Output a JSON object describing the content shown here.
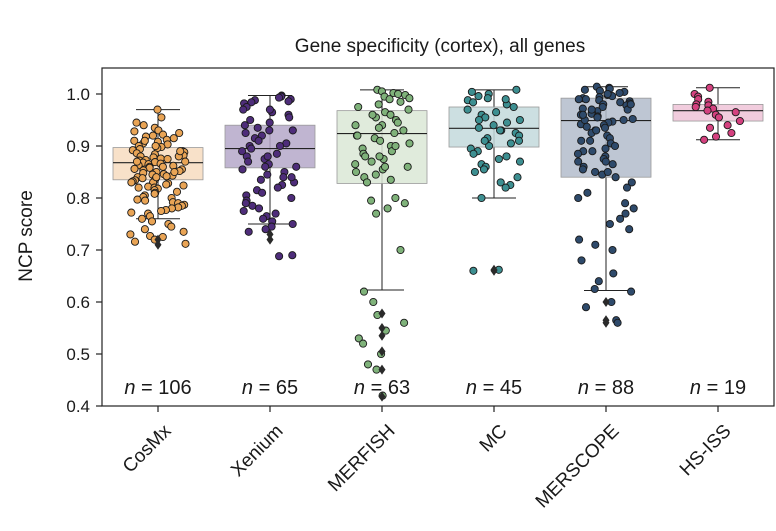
{
  "chart_data": {
    "type": "box",
    "title": "Gene specificity (cortex), all genes",
    "xlabel": "",
    "ylabel": "NCP score",
    "ylim": [
      0.4,
      1.05
    ],
    "yticks": [
      "0.4",
      "0.5",
      "0.6",
      "0.7",
      "0.8",
      "0.9",
      "1.0"
    ],
    "grid": false,
    "n_prefix": "n",
    "n_equals": " = ",
    "series": [
      {
        "name": "CosMx",
        "n": 106,
        "n_text": "106",
        "box_color": "#f7dcc0",
        "point_color": "#e9a455",
        "q1": 0.835,
        "median": 0.868,
        "q3": 0.897,
        "whisker_low": 0.76,
        "whisker_high": 0.97,
        "outliers": [
          0.71,
          0.72
        ],
        "points": [
          0.97,
          0.955,
          0.945,
          0.94,
          0.935,
          0.93,
          0.928,
          0.925,
          0.922,
          0.92,
          0.918,
          0.915,
          0.912,
          0.91,
          0.908,
          0.905,
          0.903,
          0.9,
          0.898,
          0.896,
          0.894,
          0.892,
          0.89,
          0.888,
          0.886,
          0.884,
          0.882,
          0.88,
          0.878,
          0.876,
          0.875,
          0.873,
          0.872,
          0.87,
          0.869,
          0.868,
          0.866,
          0.865,
          0.863,
          0.862,
          0.86,
          0.858,
          0.856,
          0.855,
          0.853,
          0.852,
          0.85,
          0.848,
          0.846,
          0.845,
          0.843,
          0.842,
          0.84,
          0.838,
          0.836,
          0.834,
          0.832,
          0.83,
          0.828,
          0.826,
          0.824,
          0.822,
          0.82,
          0.818,
          0.815,
          0.812,
          0.81,
          0.808,
          0.805,
          0.802,
          0.8,
          0.797,
          0.795,
          0.792,
          0.79,
          0.787,
          0.785,
          0.782,
          0.78,
          0.777,
          0.775,
          0.772,
          0.77,
          0.765,
          0.76,
          0.755,
          0.75,
          0.745,
          0.74,
          0.735,
          0.73,
          0.727,
          0.725,
          0.72,
          0.716,
          0.712,
          0.9,
          0.88,
          0.86,
          0.84,
          0.87,
          0.85,
          0.89,
          0.91,
          0.83,
          0.82
        ]
      },
      {
        "name": "Xenium",
        "n": 65,
        "n_text": "65",
        "box_color": "#b5a8c9",
        "point_color": "#4e2d7a",
        "q1": 0.858,
        "median": 0.895,
        "q3": 0.94,
        "whisker_low": 0.75,
        "whisker_high": 0.997,
        "outliers": [
          0.73,
          0.72
        ],
        "points": [
          0.997,
          0.995,
          0.993,
          0.99,
          0.988,
          0.986,
          0.984,
          0.982,
          0.975,
          0.97,
          0.965,
          0.96,
          0.955,
          0.95,
          0.945,
          0.94,
          0.935,
          0.93,
          0.925,
          0.92,
          0.915,
          0.91,
          0.905,
          0.9,
          0.895,
          0.89,
          0.885,
          0.88,
          0.875,
          0.87,
          0.865,
          0.86,
          0.855,
          0.85,
          0.845,
          0.84,
          0.835,
          0.83,
          0.825,
          0.82,
          0.815,
          0.81,
          0.805,
          0.8,
          0.795,
          0.79,
          0.785,
          0.78,
          0.775,
          0.77,
          0.765,
          0.76,
          0.755,
          0.75,
          0.745,
          0.74,
          0.735,
          0.69,
          0.688,
          0.97,
          0.93,
          0.9,
          0.88,
          0.86,
          0.84
        ]
      },
      {
        "name": "MERFISH",
        "n": 63,
        "n_text": "63",
        "box_color": "#dbe8d6",
        "point_color": "#7fb27a",
        "q1": 0.828,
        "median": 0.924,
        "q3": 0.968,
        "whisker_low": 0.623,
        "whisker_high": 1.008,
        "outliers": [
          0.578,
          0.55,
          0.535,
          0.505,
          0.47,
          0.418
        ],
        "points": [
          1.008,
          1.005,
          1.002,
          1.0,
          0.998,
          0.995,
          0.992,
          0.99,
          0.985,
          0.98,
          0.975,
          0.97,
          0.965,
          0.96,
          0.955,
          0.95,
          0.945,
          0.94,
          0.935,
          0.93,
          0.925,
          0.92,
          0.915,
          0.91,
          0.905,
          0.9,
          0.895,
          0.89,
          0.885,
          0.88,
          0.875,
          0.87,
          0.865,
          0.86,
          0.855,
          0.85,
          0.845,
          0.84,
          0.835,
          0.83,
          0.8,
          0.795,
          0.79,
          0.78,
          0.77,
          0.7,
          0.62,
          0.6,
          0.575,
          0.56,
          0.545,
          0.53,
          0.52,
          0.5,
          0.48,
          0.47,
          0.42,
          0.96,
          0.94,
          0.92,
          0.9,
          0.88,
          0.86
        ]
      },
      {
        "name": "MC",
        "n": 45,
        "n_text": "45",
        "box_color": "#c3d9dc",
        "point_color": "#3d8f91",
        "q1": 0.898,
        "median": 0.934,
        "q3": 0.975,
        "whisker_low": 0.8,
        "whisker_high": 1.008,
        "outliers": [
          0.662,
          0.66
        ],
        "points": [
          1.008,
          1.004,
          1.0,
          0.996,
          0.992,
          0.988,
          0.984,
          0.98,
          0.975,
          0.97,
          0.965,
          0.96,
          0.955,
          0.95,
          0.945,
          0.94,
          0.935,
          0.93,
          0.925,
          0.92,
          0.915,
          0.91,
          0.905,
          0.9,
          0.895,
          0.89,
          0.885,
          0.88,
          0.875,
          0.87,
          0.865,
          0.86,
          0.855,
          0.85,
          0.84,
          0.83,
          0.825,
          0.82,
          0.8,
          0.662,
          0.66,
          0.99,
          0.95,
          0.93,
          0.91
        ]
      },
      {
        "name": "MERSCOPE",
        "n": 88,
        "n_text": "88",
        "box_color": "#b3bccb",
        "point_color": "#2e4a6b",
        "q1": 0.84,
        "median": 0.949,
        "q3": 0.992,
        "whisker_low": 0.622,
        "whisker_high": 1.014,
        "outliers": [
          0.6,
          0.565,
          0.56
        ],
        "points": [
          1.014,
          1.012,
          1.01,
          1.008,
          1.006,
          1.004,
          1.002,
          1.0,
          0.998,
          0.996,
          0.994,
          0.992,
          0.99,
          0.988,
          0.986,
          0.984,
          0.982,
          0.98,
          0.978,
          0.975,
          0.972,
          0.97,
          0.967,
          0.965,
          0.962,
          0.96,
          0.957,
          0.955,
          0.952,
          0.95,
          0.947,
          0.945,
          0.942,
          0.94,
          0.937,
          0.935,
          0.93,
          0.925,
          0.92,
          0.915,
          0.91,
          0.905,
          0.9,
          0.895,
          0.89,
          0.885,
          0.88,
          0.875,
          0.87,
          0.865,
          0.86,
          0.855,
          0.85,
          0.845,
          0.84,
          0.83,
          0.82,
          0.81,
          0.8,
          0.79,
          0.78,
          0.77,
          0.76,
          0.75,
          0.74,
          0.72,
          0.71,
          0.7,
          0.68,
          0.655,
          0.64,
          0.625,
          0.62,
          0.6,
          0.59,
          0.565,
          0.56,
          0.99,
          0.97,
          0.95,
          0.93,
          0.91,
          0.89,
          0.87,
          0.85,
          1.0,
          0.98,
          0.96
        ]
      },
      {
        "name": "HS-ISS",
        "n": 19,
        "n_text": "19",
        "box_color": "#efc3d7",
        "point_color": "#d4417f",
        "q1": 0.948,
        "median": 0.968,
        "q3": 0.98,
        "whisker_low": 0.912,
        "whisker_high": 1.012,
        "outliers": [],
        "points": [
          1.012,
          1.0,
          0.995,
          0.99,
          0.985,
          0.98,
          0.978,
          0.975,
          0.972,
          0.968,
          0.965,
          0.96,
          0.955,
          0.948,
          0.94,
          0.935,
          0.925,
          0.918,
          0.912
        ]
      }
    ]
  }
}
